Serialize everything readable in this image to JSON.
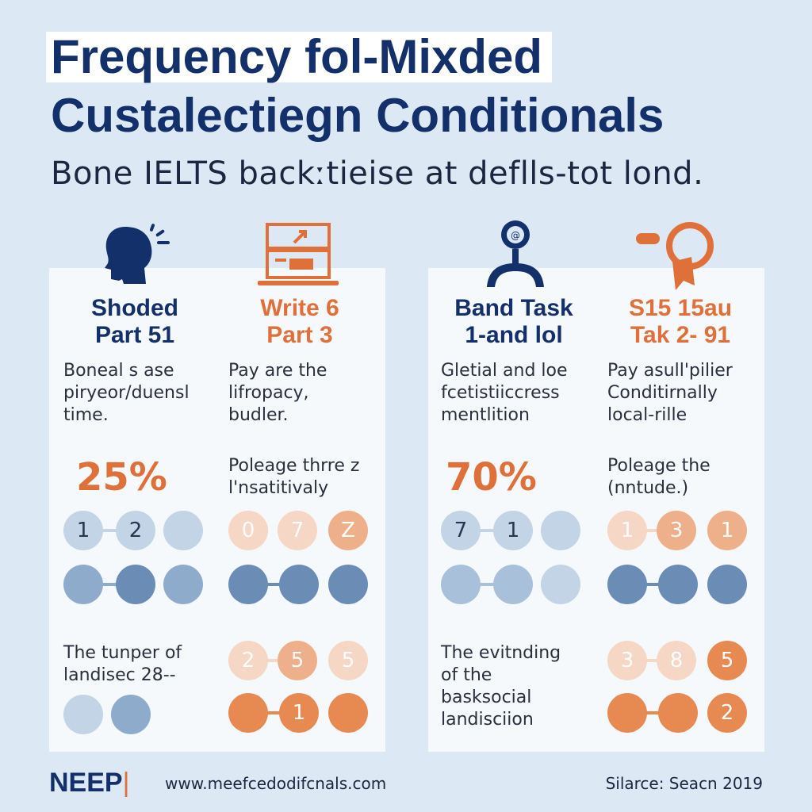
{
  "header": {
    "title_line1": "Frequency fol-Mixded",
    "title_line2": "Custalectiegn Conditionals",
    "subtitle": "Bone IELTS backːtieise at deflls-tot lond."
  },
  "colors": {
    "navy": "#14306b",
    "orange": "#e0703a",
    "light_blue": "#c2d4e6",
    "mid_blue": "#8fabcc",
    "dark_blue": "#6a8cb5",
    "light_orange": "#f6d6c4",
    "mid_orange": "#eeb08a",
    "strong_orange": "#e68a52"
  },
  "columns": [
    {
      "icon": "head-speaking-icon",
      "heading_line1": "Shoded",
      "heading_line2": "Part 51",
      "desc": [
        "Boneal s ase",
        "piryeor/duensl",
        "time."
      ],
      "stat": "25%",
      "dots_row1": [
        "1",
        "2",
        ""
      ],
      "footer_lines": [
        "The tunper of",
        "landisec 28--"
      ],
      "dots_row4": [
        "",
        ""
      ]
    },
    {
      "icon": "laptop-writing-icon",
      "heading_line1": "Write 6",
      "heading_line2": "Part 3",
      "desc": [
        "Pay are the",
        "lifropacy,",
        "budler."
      ],
      "stat_text": [
        "Poleage thrre z",
        "l'nsatitivaly"
      ],
      "dots_row1": [
        "0",
        "7",
        "Z"
      ],
      "dots_row3": [
        "2",
        "5",
        "5"
      ],
      "dots_row4": [
        "",
        "1",
        ""
      ]
    },
    {
      "icon": "award-badge-icon",
      "heading_line1": "Band Task",
      "heading_line2": "1-and lol",
      "desc": [
        "Gletial and loe",
        "fcetistiiccress",
        "mentlition"
      ],
      "stat": "70%",
      "dots_row1": [
        "7",
        "1",
        ""
      ],
      "footer_lines": [
        "The evitnding",
        "of the",
        "basksocial",
        "landisciion"
      ]
    },
    {
      "icon": "magnifier-icon",
      "heading_line1": "S15 15au",
      "heading_line2": "Tak 2- 91",
      "desc": [
        "Pay asull'pilier",
        "Conditirnally",
        "local-rille"
      ],
      "stat_text": [
        "Poleage the",
        "(nntude.)"
      ],
      "dots_row1": [
        "1",
        "3",
        "1"
      ],
      "dots_row3": [
        "3",
        "8",
        "5"
      ],
      "dots_row4": [
        "",
        "",
        "2"
      ]
    }
  ],
  "footer": {
    "logo": "NEEP",
    "logo_bar": "|",
    "url": "www.meefcedodifcnals.com",
    "source": "Silarce: Seacn 2019"
  }
}
